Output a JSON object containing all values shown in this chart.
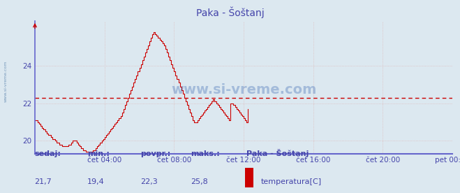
{
  "title": "Paka - Šoštanj",
  "bg_color": "#dce8f0",
  "plot_bg_color": "#dce8f0",
  "line_color": "#cc0000",
  "dashed_line_color": "#cc0000",
  "dashed_line_value": 22.3,
  "grid_color": "#ddbbbb",
  "axis_color": "#6666cc",
  "text_color": "#4444aa",
  "ylim": [
    19.3,
    26.4
  ],
  "yticks": [
    20,
    22,
    24
  ],
  "xtick_labels": [
    "čet 04:00",
    "čet 08:00",
    "čet 12:00",
    "čet 16:00",
    "čet 20:00",
    "pet 00:00"
  ],
  "watermark": "www.si-vreme.com",
  "sidebar_text": "www.si-vreme.com",
  "footer_labels": [
    "sedaj:",
    "min.:",
    "povpr.:",
    "maks.:"
  ],
  "footer_values": [
    "21,7",
    "19,4",
    "22,3",
    "25,8"
  ],
  "legend_station": "Paka - Šoštanj",
  "legend_label": "temperatura[C]",
  "legend_color": "#cc0000",
  "temperatura": [
    21.1,
    21.1,
    21.0,
    20.9,
    20.8,
    20.7,
    20.6,
    20.5,
    20.4,
    20.3,
    20.3,
    20.2,
    20.1,
    20.1,
    20.0,
    19.9,
    19.9,
    19.8,
    19.8,
    19.7,
    19.7,
    19.7,
    19.7,
    19.8,
    19.8,
    19.9,
    20.0,
    20.0,
    20.0,
    19.9,
    19.8,
    19.7,
    19.6,
    19.5,
    19.5,
    19.4,
    19.4,
    19.4,
    19.4,
    19.4,
    19.5,
    19.5,
    19.6,
    19.7,
    19.8,
    19.9,
    20.0,
    20.1,
    20.2,
    20.3,
    20.4,
    20.5,
    20.6,
    20.7,
    20.8,
    20.9,
    21.0,
    21.1,
    21.2,
    21.3,
    21.5,
    21.7,
    21.9,
    22.1,
    22.3,
    22.5,
    22.7,
    22.9,
    23.1,
    23.3,
    23.5,
    23.7,
    23.9,
    24.1,
    24.3,
    24.5,
    24.7,
    24.9,
    25.1,
    25.3,
    25.5,
    25.7,
    25.8,
    25.7,
    25.6,
    25.5,
    25.4,
    25.3,
    25.2,
    25.1,
    24.9,
    24.7,
    24.5,
    24.3,
    24.1,
    23.9,
    23.7,
    23.5,
    23.3,
    23.1,
    22.9,
    22.7,
    22.5,
    22.3,
    22.1,
    21.9,
    21.7,
    21.5,
    21.3,
    21.1,
    21.0,
    21.0,
    21.1,
    21.2,
    21.3,
    21.4,
    21.5,
    21.6,
    21.7,
    21.8,
    21.9,
    22.0,
    22.1,
    22.2,
    22.1,
    22.0,
    21.9,
    21.8,
    21.7,
    21.6,
    21.5,
    21.4,
    21.3,
    21.2,
    21.1,
    22.0,
    22.0,
    21.9,
    21.8,
    21.7,
    21.6,
    21.5,
    21.4,
    21.3,
    21.2,
    21.1,
    21.0,
    21.7
  ]
}
